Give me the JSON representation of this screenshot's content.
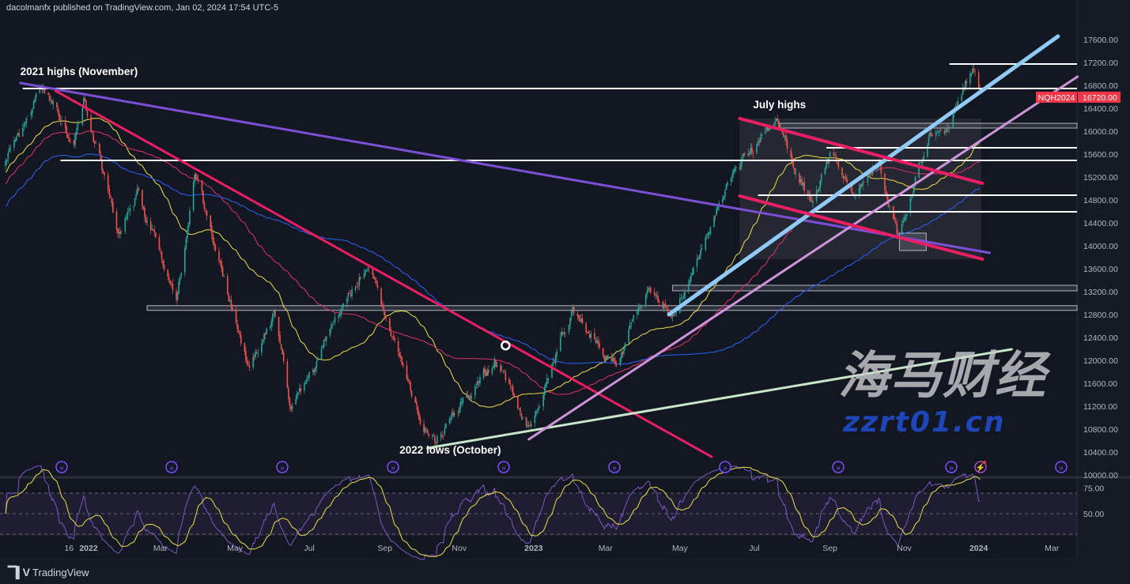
{
  "header": {
    "text": "dacolmanfx published on TradingView.com, Jan 02, 2024 17:54 UTC-5"
  },
  "footer": {
    "brand": "TradingView",
    "logo": "tradingview-logo"
  },
  "watermark": {
    "cn": "海马财经",
    "url": "zzrt01.cn"
  },
  "colors": {
    "background": "#161a25",
    "up": "#26a69a",
    "down": "#ef5350",
    "ma_fast": "#f0e040",
    "ma_mid": "#e0306a",
    "ma_slow": "#2962ff",
    "rsi": "#7e57c2",
    "rsi_ma": "#f0e040"
  },
  "chart_data": {
    "type": "candlestick",
    "symbol_label": "NQH2024",
    "last_price": "16720.00",
    "approx_close_path": {
      "dates": [
        "2021-10-25",
        "2021-11-22",
        "2021-12-20",
        "2021-12-28",
        "2022-01-25",
        "2022-02-10",
        "2022-03-14",
        "2022-03-29",
        "2022-05-12",
        "2022-06-02",
        "2022-06-16",
        "2022-08-16",
        "2022-09-30",
        "2022-10-13",
        "2022-11-30",
        "2022-12-28",
        "2023-02-02",
        "2023-03-10",
        "2023-04-03",
        "2023-04-25",
        "2023-06-15",
        "2023-07-19",
        "2023-08-18",
        "2023-09-01",
        "2023-09-22",
        "2023-10-11",
        "2023-10-26",
        "2023-11-22",
        "2023-12-05",
        "2023-12-28",
        "2024-01-02"
      ],
      "values": [
        15400,
        16700,
        15800,
        16500,
        14300,
        14900,
        13100,
        15200,
        11900,
        12800,
        11100,
        13700,
        11000,
        10600,
        12000,
        10800,
        12900,
        11900,
        13200,
        12800,
        15300,
        16100,
        14700,
        15600,
        14800,
        15400,
        14200,
        16100,
        15900,
        17150,
        16720
      ]
    },
    "moving_averages": [
      {
        "color": "#f0e040"
      },
      {
        "color": "#e0306a"
      },
      {
        "color": "#2962ff"
      }
    ],
    "ylim": [
      10000,
      17600
    ],
    "yticks": [
      "17600.00",
      "17200.00",
      "16800.00",
      "16400.00",
      "16000.00",
      "15600.00",
      "15200.00",
      "14800.00",
      "14400.00",
      "14000.00",
      "13600.00",
      "13200.00",
      "12800.00",
      "12400.00",
      "12000.00",
      "11600.00",
      "11200.00",
      "10800.00",
      "10400.00",
      "10000.00"
    ],
    "xticks": [
      {
        "label": "16",
        "date": "2021-12-16"
      },
      {
        "label": "2022",
        "date": "2022-01-01"
      },
      {
        "label": "Mar",
        "date": "2022-03-01"
      },
      {
        "label": "May",
        "date": "2022-05-01"
      },
      {
        "label": "Jul",
        "date": "2022-07-01"
      },
      {
        "label": "Sep",
        "date": "2022-09-01"
      },
      {
        "label": "Nov",
        "date": "2022-11-01"
      },
      {
        "label": "2023",
        "date": "2023-01-01"
      },
      {
        "label": "Mar",
        "date": "2023-03-01"
      },
      {
        "label": "May",
        "date": "2023-05-01"
      },
      {
        "label": "Jul",
        "date": "2023-07-01"
      },
      {
        "label": "Sep",
        "date": "2023-09-01"
      },
      {
        "label": "Nov",
        "date": "2023-11-01"
      },
      {
        "label": "2024",
        "date": "2024-01-01"
      },
      {
        "label": "Mar",
        "date": "2024-03-01"
      }
    ],
    "annotations": {
      "labels": [
        {
          "text": "2021 highs (November)",
          "date": "2021-11-06",
          "price": 16980
        },
        {
          "text": "July highs",
          "date": "2023-06-30",
          "price": 16400
        },
        {
          "text": "2022 lows (October)",
          "date": "2022-09-13",
          "price": 10370
        }
      ],
      "trendlines": [
        {
          "name": "purple-long-trendline",
          "color": "#7b4fd6",
          "width": 3,
          "from": [
            "2021-11-06",
            16841
          ],
          "to": [
            "2024-01-10",
            13876
          ]
        },
        {
          "name": "pink-descending-trendline",
          "color": "#e91e63",
          "width": 3,
          "from": [
            "2021-12-05",
            16703
          ],
          "to": [
            "2023-05-27",
            10317
          ]
        },
        {
          "name": "green-support-trendline",
          "color": "#c8e6c9",
          "width": 3,
          "from": [
            "2022-10-06",
            10469
          ],
          "to": [
            "2024-01-28",
            12193
          ]
        },
        {
          "name": "blue-channel-trendline",
          "color": "#90caf9",
          "width": 5,
          "from": [
            "2023-04-22",
            12800
          ],
          "to": [
            "2024-03-06",
            17655
          ]
        },
        {
          "name": "violet-rising-trendline",
          "color": "#ce93d8",
          "width": 3,
          "from": [
            "2022-12-28",
            10621
          ],
          "to": [
            "2024-03-22",
            16952
          ]
        },
        {
          "name": "pink-channel-upper",
          "color": "#e91e63",
          "width": 4,
          "from": [
            "2023-06-19",
            16221
          ],
          "to": [
            "2024-01-04",
            15090
          ]
        },
        {
          "name": "pink-channel-lower",
          "color": "#e91e63",
          "width": 4,
          "from": [
            "2023-06-19",
            14869
          ],
          "to": [
            "2024-01-04",
            13766
          ]
        }
      ],
      "horizontal_lines": [
        {
          "price": 16745,
          "from": "2021-11-08"
        },
        {
          "price": 15490,
          "from": "2021-12-09"
        },
        {
          "price": 17172,
          "from": "2023-12-08"
        },
        {
          "price": 15710,
          "from": "2023-08-29"
        },
        {
          "price": 14883,
          "from": "2023-07-04"
        },
        {
          "price": 14593,
          "from": "2023-08-20"
        }
      ],
      "zones": [
        {
          "from": "2023-04-25",
          "top": 13310,
          "bottom": 13214
        },
        {
          "from": "2022-02-18",
          "top": 12955,
          "bottom": 12872
        },
        {
          "from": "2023-07-22",
          "top": 16138,
          "bottom": 16055
        }
      ],
      "boxes": [
        {
          "from": "2023-06-19",
          "to": "2024-01-03",
          "top": 16221,
          "bottom": 13766
        },
        {
          "from": "2023-10-28",
          "to": "2023-11-19",
          "top": 14221,
          "bottom": 13917
        }
      ],
      "marker_circle": {
        "date": "2022-12-09",
        "price": 12260
      }
    },
    "rsi_pane": {
      "yticks": [
        "75.00",
        "50.00"
      ],
      "band": [
        30,
        70
      ]
    }
  },
  "event_icons": [
    "dividend-arrow-icon",
    "dividend-arrow-icon",
    "dividend-arrow-icon",
    "dividend-arrow-icon",
    "dividend-arrow-icon",
    "dividend-arrow-icon",
    "dividend-arrow-icon",
    "dividend-arrow-icon",
    "dividend-arrow-icon",
    "lightning-icon",
    "dividend-arrow-icon"
  ]
}
